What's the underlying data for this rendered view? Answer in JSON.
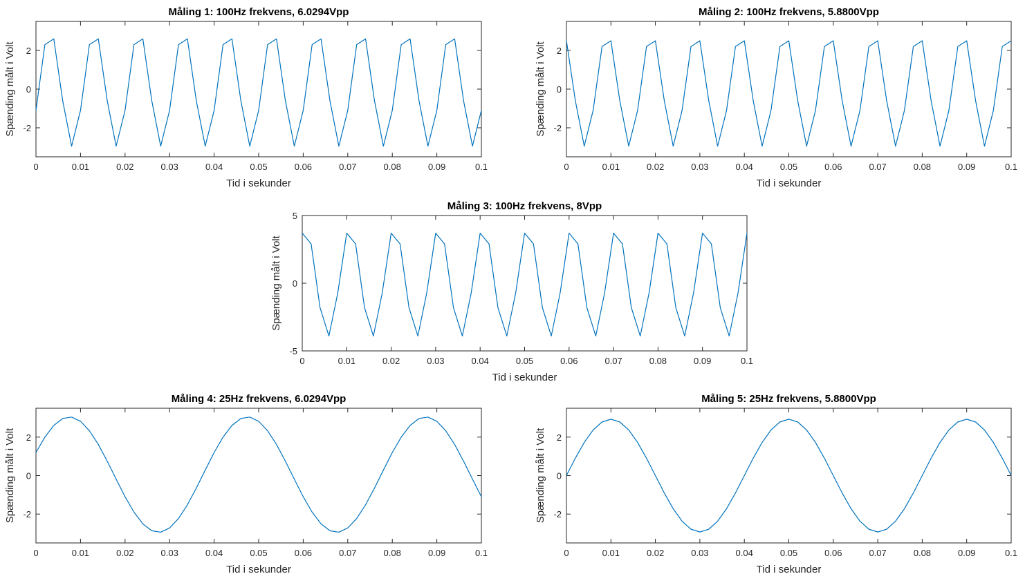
{
  "figure": {
    "line_color": "#0072BD"
  },
  "chart_data": [
    {
      "type": "line",
      "title": "Måling 1: 100Hz frekvens, 6.0294Vpp",
      "xlabel": "Tid i sekunder",
      "ylabel": "Spænding målt i Volt",
      "xlim": [
        0,
        0.1
      ],
      "ylim": [
        -3.5,
        3.5
      ],
      "xticks": [
        0,
        0.01,
        0.02,
        0.03,
        0.04,
        0.05,
        0.06,
        0.07,
        0.08,
        0.09,
        0.1
      ],
      "xtick_labels": [
        "0",
        "0.01",
        "0.02",
        "0.03",
        "0.04",
        "0.05",
        "0.06",
        "0.07",
        "0.08",
        "0.09",
        "0.1"
      ],
      "yticks": [
        -2,
        0,
        2
      ],
      "ytick_labels": [
        "-2",
        "0",
        "2"
      ],
      "series": [
        {
          "name": "Måling 1",
          "pattern": [
            -1.1,
            2.3,
            2.6,
            -0.6,
            -2.95
          ],
          "sample_interval": 0.002,
          "points": 51
        }
      ]
    },
    {
      "type": "line",
      "title": "Måling 2: 100Hz frekvens, 5.8800Vpp",
      "xlabel": "Tid i sekunder",
      "ylabel": "Spænding målt i Volt",
      "xlim": [
        0,
        0.1
      ],
      "ylim": [
        -3.5,
        3.5
      ],
      "xticks": [
        0,
        0.01,
        0.02,
        0.03,
        0.04,
        0.05,
        0.06,
        0.07,
        0.08,
        0.09,
        0.1
      ],
      "xtick_labels": [
        "0",
        "0.01",
        "0.02",
        "0.03",
        "0.04",
        "0.05",
        "0.06",
        "0.07",
        "0.08",
        "0.09",
        "0.1"
      ],
      "yticks": [
        -2,
        0,
        2
      ],
      "ytick_labels": [
        "-2",
        "0",
        "2"
      ],
      "series": [
        {
          "name": "Måling 2",
          "pattern": [
            2.5,
            -0.6,
            -2.95,
            -1.1,
            2.2
          ],
          "sample_interval": 0.002,
          "points": 51
        }
      ]
    },
    {
      "type": "line",
      "title": "Måling 3: 100Hz frekvens, 8Vpp",
      "xlabel": "Tid i sekunder",
      "ylabel": "Spænding målt i Volt",
      "xlim": [
        0,
        0.1
      ],
      "ylim": [
        -5,
        5
      ],
      "xticks": [
        0,
        0.01,
        0.02,
        0.03,
        0.04,
        0.05,
        0.06,
        0.07,
        0.08,
        0.09,
        0.1
      ],
      "xtick_labels": [
        "0",
        "0.01",
        "0.02",
        "0.03",
        "0.04",
        "0.05",
        "0.06",
        "0.07",
        "0.08",
        "0.09",
        "0.1"
      ],
      "yticks": [
        -5,
        0,
        5
      ],
      "ytick_labels": [
        "-5",
        "0",
        "5"
      ],
      "series": [
        {
          "name": "Måling 3",
          "pattern": [
            3.7,
            2.9,
            -1.8,
            -3.9,
            -0.7
          ],
          "sample_interval": 0.002,
          "points": 51
        }
      ]
    },
    {
      "type": "line",
      "title": "Måling 4: 25Hz frekvens, 6.0294Vpp",
      "xlabel": "Tid i sekunder",
      "ylabel": "Spænding målt i Volt",
      "xlim": [
        0,
        0.1
      ],
      "ylim": [
        -3.5,
        3.5
      ],
      "xticks": [
        0,
        0.01,
        0.02,
        0.03,
        0.04,
        0.05,
        0.06,
        0.07,
        0.08,
        0.09,
        0.1
      ],
      "xtick_labels": [
        "0",
        "0.01",
        "0.02",
        "0.03",
        "0.04",
        "0.05",
        "0.06",
        "0.07",
        "0.08",
        "0.09",
        "0.1"
      ],
      "yticks": [
        -2,
        0,
        2
      ],
      "ytick_labels": [
        "-2",
        "0",
        "2"
      ],
      "series": [
        {
          "name": "Måling 4",
          "sine": {
            "amplitude": 3.0,
            "offset": 0.05,
            "frequency_hz": 25,
            "peak_time": 0.0075
          },
          "sample_interval": 0.002,
          "points": 51
        }
      ]
    },
    {
      "type": "line",
      "title": "Måling 5: 25Hz frekvens, 5.8800Vpp",
      "xlabel": "Tid i sekunder",
      "ylabel": "Spænding målt i Volt",
      "xlim": [
        0,
        0.1
      ],
      "ylim": [
        -3.5,
        3.5
      ],
      "xticks": [
        0,
        0.01,
        0.02,
        0.03,
        0.04,
        0.05,
        0.06,
        0.07,
        0.08,
        0.09,
        0.1
      ],
      "xtick_labels": [
        "0",
        "0.01",
        "0.02",
        "0.03",
        "0.04",
        "0.05",
        "0.06",
        "0.07",
        "0.08",
        "0.09",
        "0.1"
      ],
      "yticks": [
        -2,
        0,
        2
      ],
      "ytick_labels": [
        "-2",
        "0",
        "2"
      ],
      "series": [
        {
          "name": "Måling 5",
          "sine": {
            "amplitude": 2.93,
            "offset": 0.0,
            "frequency_hz": 25,
            "peak_time": 0.01
          },
          "sample_interval": 0.002,
          "points": 51
        }
      ]
    }
  ]
}
